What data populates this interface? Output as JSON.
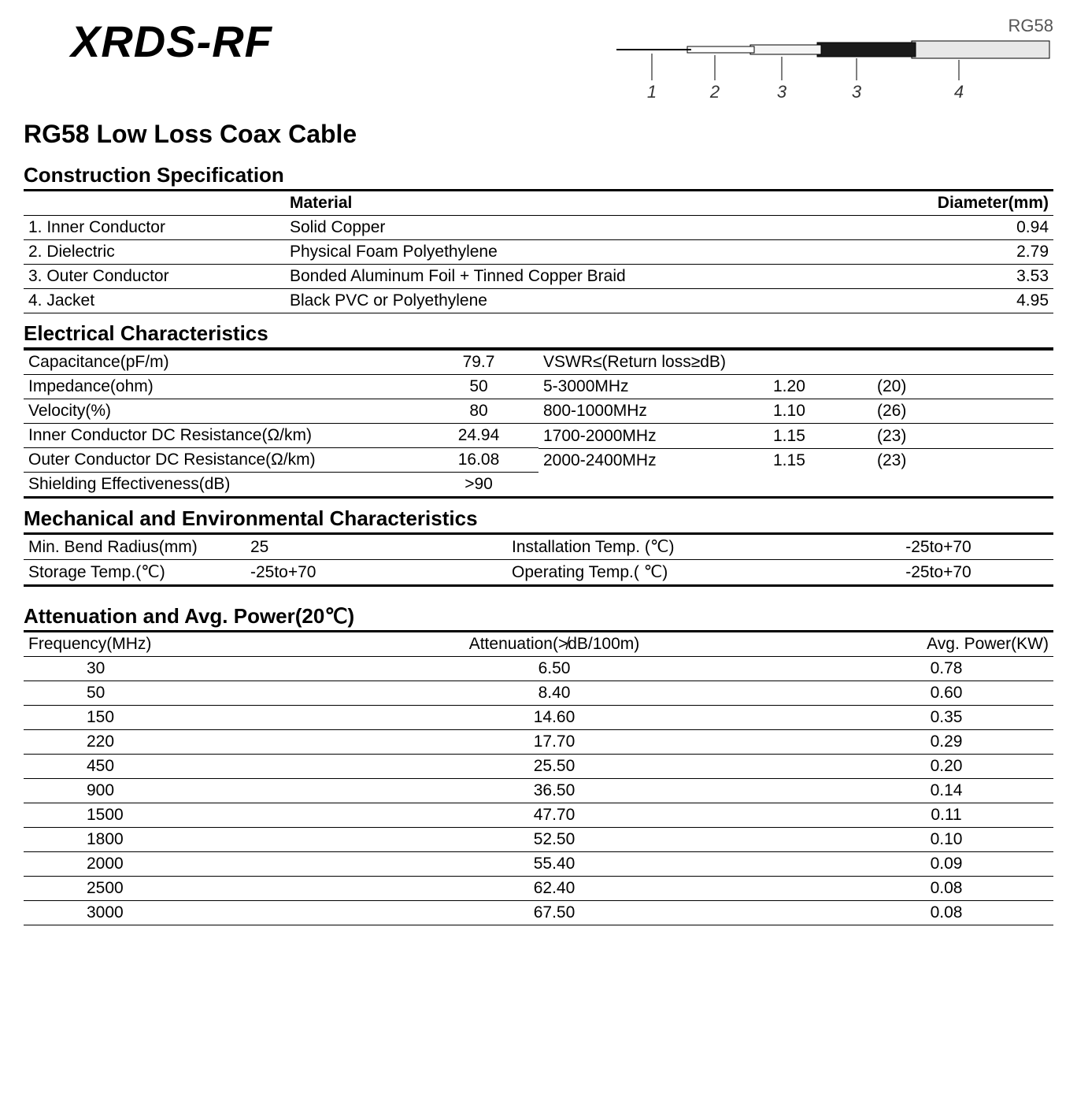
{
  "brand": "XRDS-RF",
  "product": "RG58 Low Loss Coax Cable",
  "diagram_model": "RG58",
  "diagram_callouts": [
    "1",
    "2",
    "3",
    "3",
    "4"
  ],
  "sections": {
    "construction": "Construction Specification",
    "electrical": "Electrical Characteristics",
    "mechanical": "Mechanical and Environmental Characteristics",
    "attenuation": "Attenuation and Avg. Power(20℃)"
  },
  "construction_headers": {
    "material": "Material",
    "diameter": "Diameter(mm)"
  },
  "construction": [
    {
      "part": "1. Inner Conductor",
      "material": "Solid Copper",
      "dia": "0.94"
    },
    {
      "part": "2. Dielectric",
      "material": "Physical Foam Polyethylene",
      "dia": "2.79"
    },
    {
      "part": "3. Outer Conductor",
      "material": "Bonded Aluminum Foil + Tinned Copper Braid",
      "dia": "3.53"
    },
    {
      "part": "4. Jacket",
      "material": "Black PVC or Polyethylene",
      "dia": "4.95"
    }
  ],
  "electrical_left": [
    {
      "label": "Capacitance(pF/m)",
      "val": "79.7"
    },
    {
      "label": "Impedance(ohm)",
      "val": "50"
    },
    {
      "label": "Velocity(%)",
      "val": "80"
    },
    {
      "label": "Inner Conductor DC Resistance(Ω/km)",
      "val": "24.94"
    },
    {
      "label": "Outer Conductor DC Resistance(Ω/km)",
      "val": "16.08"
    },
    {
      "label": "Shielding Effectiveness(dB)",
      "val": ">90"
    }
  ],
  "vswr_header": "VSWR≤(Return loss≥dB)",
  "electrical_right": [
    {
      "range": "5-3000MHz",
      "vswr": "1.20",
      "rl": "(20)"
    },
    {
      "range": "800-1000MHz",
      "vswr": "1.10",
      "rl": "(26)"
    },
    {
      "range": "1700-2000MHz",
      "vswr": "1.15",
      "rl": "(23)"
    },
    {
      "range": "2000-2400MHz",
      "vswr": "1.15",
      "rl": "(23)"
    }
  ],
  "mechanical": [
    {
      "l1": "Min. Bend Radius(mm)",
      "v1": "25",
      "l2": "Installation Temp. (℃)",
      "v2": "-25to+70"
    },
    {
      "l1": "Storage Temp.(℃)",
      "v1": "-25to+70",
      "l2": "Operating Temp.( ℃)",
      "v2": "-25to+70"
    }
  ],
  "atten_headers": {
    "freq": "Frequency(MHz)",
    "atten": "Attenuation(≯dB/100m)",
    "power": "Avg. Power(KW)"
  },
  "attenuation": [
    {
      "f": "30",
      "a": "6.50",
      "p": "0.78"
    },
    {
      "f": "50",
      "a": "8.40",
      "p": "0.60"
    },
    {
      "f": "150",
      "a": "14.60",
      "p": "0.35"
    },
    {
      "f": "220",
      "a": "17.70",
      "p": "0.29"
    },
    {
      "f": "450",
      "a": "25.50",
      "p": "0.20"
    },
    {
      "f": "900",
      "a": "36.50",
      "p": "0.14"
    },
    {
      "f": "1500",
      "a": "47.70",
      "p": "0.11"
    },
    {
      "f": "1800",
      "a": "52.50",
      "p": "0.10"
    },
    {
      "f": "2000",
      "a": "55.40",
      "p": "0.09"
    },
    {
      "f": "2500",
      "a": "62.40",
      "p": "0.08"
    },
    {
      "f": "3000",
      "a": "67.50",
      "p": "0.08"
    }
  ]
}
